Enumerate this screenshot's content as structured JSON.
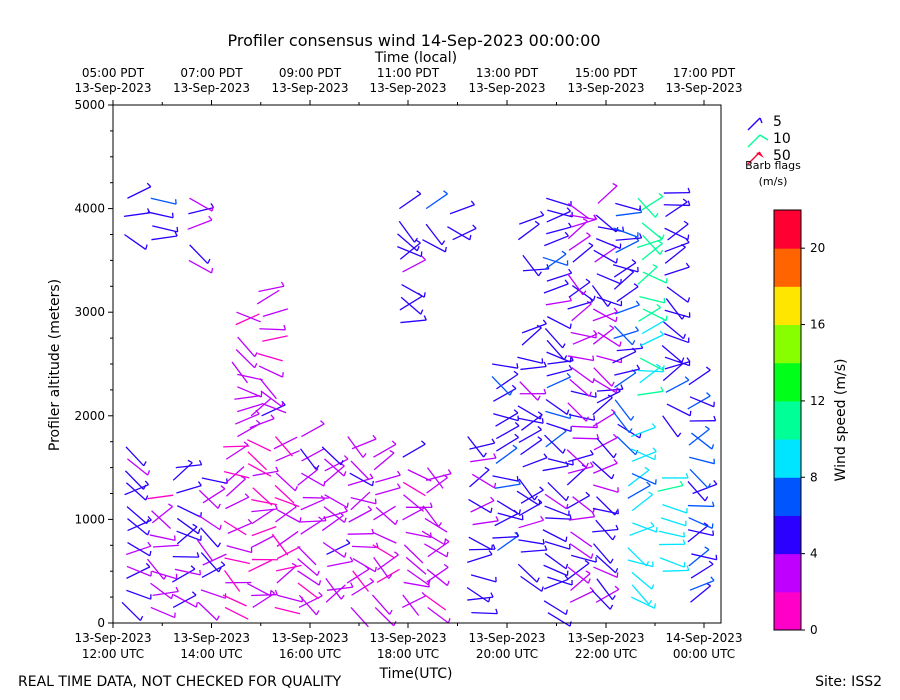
{
  "chart_data": {
    "type": "scatter",
    "title": "Profiler consensus wind 14-Sep-2023 00:00:00",
    "xlabel": "Time(UTC)",
    "xlabel_top": "Time (local)",
    "ylabel": "Profiler altitude (meters)",
    "ylim": [
      0,
      5000
    ],
    "y_ticks": [
      "0",
      "1000",
      "2000",
      "3000",
      "4000",
      "5000"
    ],
    "x_ticks_bottom": [
      {
        "line1": "13-Sep-2023",
        "line2": "12:00 UTC"
      },
      {
        "line1": "13-Sep-2023",
        "line2": "14:00 UTC"
      },
      {
        "line1": "13-Sep-2023",
        "line2": "16:00 UTC"
      },
      {
        "line1": "13-Sep-2023",
        "line2": "18:00 UTC"
      },
      {
        "line1": "13-Sep-2023",
        "line2": "20:00 UTC"
      },
      {
        "line1": "13-Sep-2023",
        "line2": "22:00 UTC"
      },
      {
        "line1": "14-Sep-2023",
        "line2": "00:00 UTC"
      }
    ],
    "x_ticks_top": [
      {
        "line1": "05:00 PDT",
        "line2": "13-Sep-2023"
      },
      {
        "line1": "07:00 PDT",
        "line2": "13-Sep-2023"
      },
      {
        "line1": "09:00 PDT",
        "line2": "13-Sep-2023"
      },
      {
        "line1": "11:00 PDT",
        "line2": "13-Sep-2023"
      },
      {
        "line1": "13:00 PDT",
        "line2": "13-Sep-2023"
      },
      {
        "line1": "15:00 PDT",
        "line2": "13-Sep-2023"
      },
      {
        "line1": "17:00 PDT",
        "line2": "13-Sep-2023"
      }
    ],
    "barb_legend": {
      "entries": [
        "5",
        "10",
        "50"
      ],
      "title": "Barb flags",
      "units": "(m/s)"
    },
    "colorbar": {
      "label": "Wind speed (m/s)",
      "range": [
        0,
        22
      ],
      "tick_labels": [
        "0",
        "4",
        "8",
        "12",
        "16",
        "20"
      ],
      "colors": [
        "#ff00c8",
        "#bf00ff",
        "#2b00ff",
        "#0055ff",
        "#00e5ff",
        "#00ff96",
        "#00ff19",
        "#88ff00",
        "#ffe600",
        "#ff6400",
        "#ff0032"
      ]
    }
  },
  "footer": {
    "left": "REAL TIME DATA, NOT CHECKED FOR QUALITY",
    "right": "Site: ISS2"
  }
}
